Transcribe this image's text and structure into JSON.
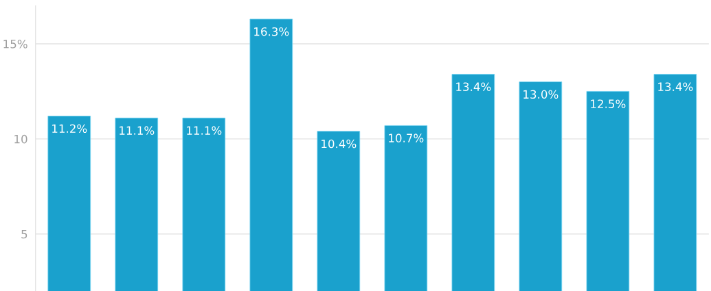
{
  "chart_data": {
    "type": "bar",
    "categories": [
      null,
      null,
      null,
      null,
      null,
      null,
      null,
      null,
      null,
      null
    ],
    "values": [
      11.2,
      11.1,
      11.1,
      16.3,
      10.4,
      10.7,
      13.4,
      13.0,
      12.5,
      13.4
    ],
    "value_labels": [
      "11.2%",
      "11.1%",
      "11.1%",
      "16.3%",
      "10.4%",
      "10.7%",
      "13.4%",
      "13.0%",
      "12.5%",
      "13.4%"
    ],
    "color": "#1aa1cd",
    "ylim": [
      2,
      17
    ],
    "yticks": [
      5,
      10,
      {
        "value": 15,
        "label": "15%"
      }
    ],
    "grid": "y"
  }
}
